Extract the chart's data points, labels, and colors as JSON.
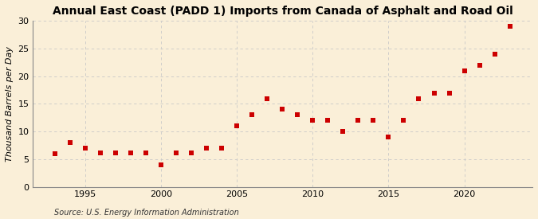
{
  "title": "Annual East Coast (PADD 1) Imports from Canada of Asphalt and Road Oil",
  "ylabel": "Thousand Barrels per Day",
  "source": "Source: U.S. Energy Information Administration",
  "background_color": "#faefd8",
  "marker_color": "#cc0000",
  "years": [
    1993,
    1994,
    1995,
    1996,
    1997,
    1998,
    1999,
    2000,
    2001,
    2002,
    2003,
    2004,
    2005,
    2006,
    2007,
    2008,
    2009,
    2010,
    2011,
    2012,
    2013,
    2014,
    2015,
    2016,
    2017,
    2018,
    2019,
    2020,
    2021,
    2022,
    2023
  ],
  "values": [
    6.0,
    8.0,
    7.0,
    6.2,
    6.2,
    6.2,
    6.1,
    4.0,
    6.1,
    6.1,
    7.0,
    7.0,
    11.0,
    13.0,
    16.0,
    14.0,
    13.0,
    12.0,
    12.0,
    10.0,
    12.0,
    12.0,
    9.0,
    12.0,
    16.0,
    17.0,
    17.0,
    21.0,
    22.0,
    24.0,
    29.0
  ],
  "xlim": [
    1991.5,
    2024.5
  ],
  "ylim": [
    0,
    30
  ],
  "yticks": [
    0,
    5,
    10,
    15,
    20,
    25,
    30
  ],
  "xticks": [
    1995,
    2000,
    2005,
    2010,
    2015,
    2020
  ],
  "grid_color": "#c8c8c8",
  "title_fontsize": 10,
  "label_fontsize": 8,
  "tick_fontsize": 8,
  "source_fontsize": 7,
  "marker_size": 22
}
